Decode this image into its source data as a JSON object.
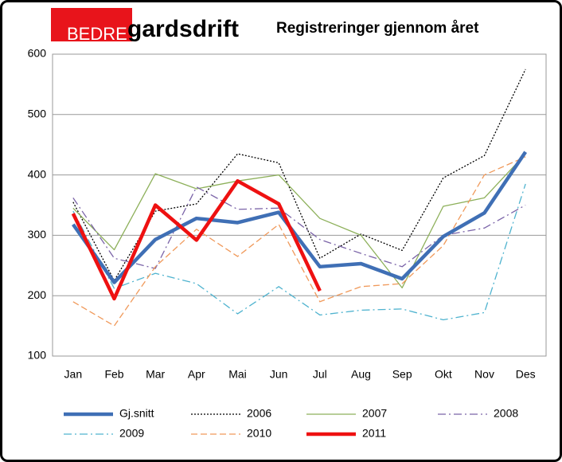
{
  "logo": {
    "left": "BEDRE",
    "right": "gardsdrift"
  },
  "chart_data": {
    "type": "line",
    "title": "Registreringer gjennom året",
    "categories": [
      "Jan",
      "Feb",
      "Mar",
      "Apr",
      "Mai",
      "Jun",
      "Jul",
      "Aug",
      "Sep",
      "Okt",
      "Nov",
      "Des"
    ],
    "ylim": [
      100,
      600
    ],
    "yticks": [
      100,
      200,
      300,
      400,
      500,
      600
    ],
    "grid": true,
    "series": [
      {
        "name": "Gj.snitt",
        "color": "#3f6fb5",
        "style": "solid",
        "weight": "heavy",
        "values": [
          318,
          222,
          293,
          328,
          321,
          338,
          248,
          253,
          228,
          298,
          337,
          438
        ]
      },
      {
        "name": "2006",
        "color": "#000000",
        "style": "dotted",
        "weight": "light",
        "values": [
          355,
          225,
          340,
          352,
          435,
          420,
          262,
          302,
          275,
          395,
          432,
          575
        ]
      },
      {
        "name": "2007",
        "color": "#8db05a",
        "style": "solid",
        "weight": "light",
        "values": [
          345,
          276,
          402,
          377,
          390,
          400,
          328,
          300,
          213,
          348,
          362,
          435
        ]
      },
      {
        "name": "2008",
        "color": "#7b64a8",
        "style": "dashdot",
        "weight": "light",
        "values": [
          362,
          262,
          245,
          380,
          343,
          345,
          293,
          270,
          248,
          300,
          312,
          350
        ]
      },
      {
        "name": "2009",
        "color": "#4fb3cf",
        "style": "dashdot",
        "weight": "light",
        "values": [
          340,
          212,
          237,
          220,
          170,
          215,
          168,
          176,
          178,
          160,
          172,
          385
        ]
      },
      {
        "name": "2010",
        "color": "#f0995a",
        "style": "dashed",
        "weight": "light",
        "values": [
          190,
          150,
          248,
          310,
          265,
          318,
          190,
          215,
          220,
          283,
          400,
          430
        ]
      },
      {
        "name": "2011",
        "color": "#ee1111",
        "style": "solid",
        "weight": "heavy",
        "values": [
          336,
          195,
          350,
          292,
          390,
          352,
          208,
          null,
          null,
          null,
          null,
          null
        ]
      }
    ]
  }
}
